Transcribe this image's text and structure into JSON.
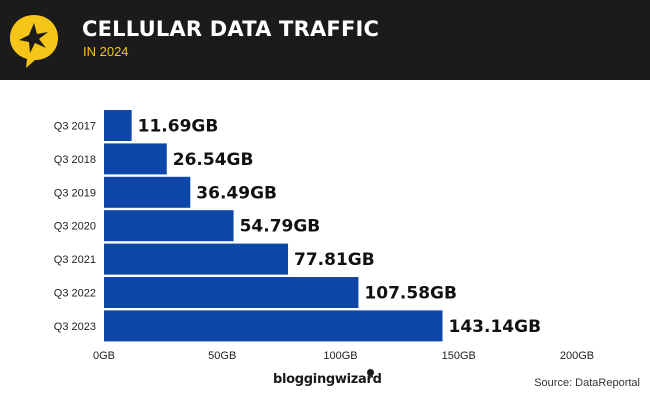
{
  "header": {
    "title": "CELLULAR DATA TRAFFIC",
    "subtitle": "IN 2024",
    "badge_icon": "star-speech-bubble-icon",
    "background_color": "#1b1b1b",
    "badge_color": "#f5c518"
  },
  "chart_data": {
    "type": "bar",
    "orientation": "horizontal",
    "categories": [
      "Q3 2017",
      "Q3 2018",
      "Q3 2019",
      "Q3 2020",
      "Q3 2021",
      "Q3 2022",
      "Q3 2023"
    ],
    "values": [
      11.69,
      26.54,
      36.49,
      54.79,
      77.81,
      107.58,
      143.14
    ],
    "value_labels": [
      "11.69GB",
      "26.54GB",
      "36.49GB",
      "54.79GB",
      "77.81GB",
      "107.58GB",
      "143.14GB"
    ],
    "xlim": [
      0,
      200
    ],
    "x_ticks": [
      0,
      50,
      100,
      150,
      200
    ],
    "x_tick_labels": [
      "0GB",
      "50GB",
      "100GB",
      "150GB",
      "200GB"
    ],
    "bar_color": "#0f47a8",
    "grid": false,
    "legend": "none"
  },
  "footer": {
    "brand": "bloggingwizard",
    "source": "Source: DataReportal"
  }
}
